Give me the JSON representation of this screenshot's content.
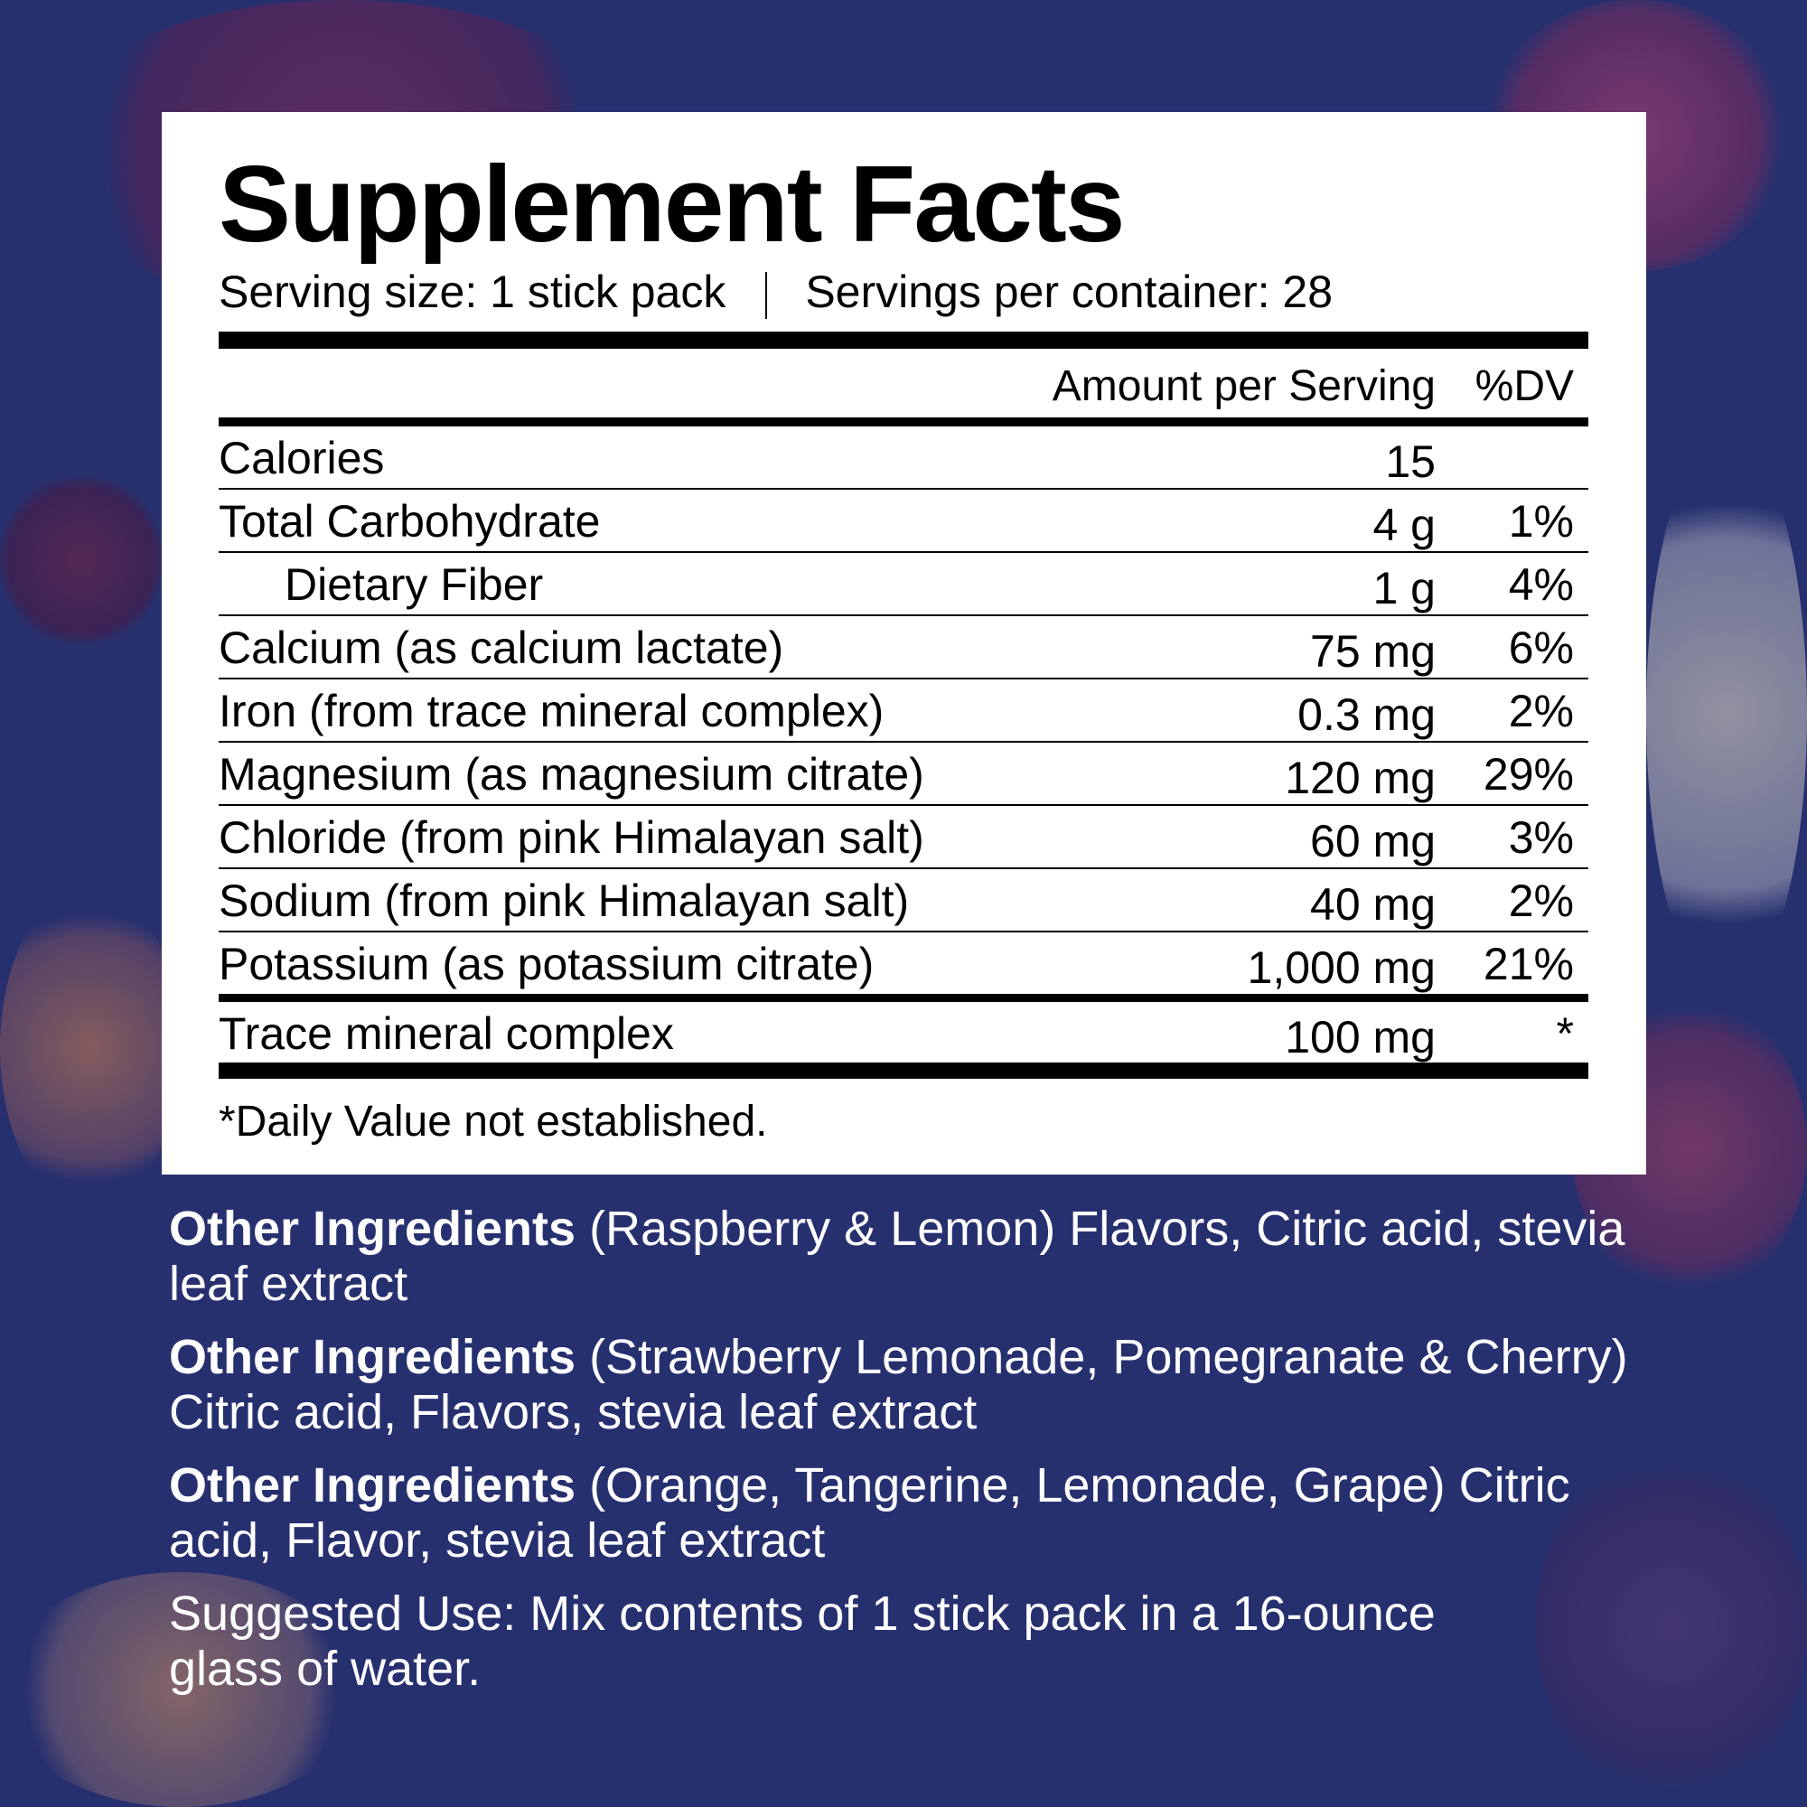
{
  "panel": {
    "title": "Supplement Facts",
    "serving_size": "Serving size: 1 stick pack",
    "servings_per_container": "Servings per container: 28",
    "header": {
      "amount": "Amount per Serving",
      "dv": "%DV"
    },
    "rows": [
      {
        "name": "Calories",
        "amount": "15",
        "dv": ""
      },
      {
        "name": "Total Carbohydrate",
        "amount": "4 g",
        "dv": "1%"
      },
      {
        "name": "Dietary Fiber",
        "amount": "1 g",
        "dv": "4%"
      },
      {
        "name": "Calcium (as calcium lactate)",
        "amount": "75 mg",
        "dv": "6%"
      },
      {
        "name": "Iron (from trace mineral complex)",
        "amount": "0.3 mg",
        "dv": "2%"
      },
      {
        "name": "Magnesium (as magnesium citrate)",
        "amount": "120 mg",
        "dv": "29%"
      },
      {
        "name": "Chloride (from pink Himalayan salt)",
        "amount": "60 mg",
        "dv": "3%"
      },
      {
        "name": "Sodium (from pink Himalayan salt)",
        "amount": "40 mg",
        "dv": "2%"
      },
      {
        "name": "Potassium (as potassium citrate)",
        "amount": "1,000 mg",
        "dv": "21%"
      },
      {
        "name": "Trace mineral complex",
        "amount": "100 mg",
        "dv": "*"
      }
    ],
    "footnote": "*Daily Value not established."
  },
  "ingredients": [
    {
      "label": "Other Ingredients",
      "text": " (Raspberry & Lemon) Flavors, Citric acid, stevia leaf extract"
    },
    {
      "label": "Other Ingredients",
      "text": " (Strawberry Lemonade, Pomegranate & Cherry) Citric acid, Flavors, stevia leaf extract"
    },
    {
      "label": "Other Ingredients",
      "text": " (Orange, Tangerine, Lemonade, Grape) Citric acid, Flavor, stevia leaf extract"
    }
  ],
  "suggested_use": "Suggested Use: Mix contents of 1 stick pack in a 16-ounce glass of water.",
  "colors": {
    "background": "#27306f",
    "panel": "#ffffff",
    "text": "#000000"
  }
}
